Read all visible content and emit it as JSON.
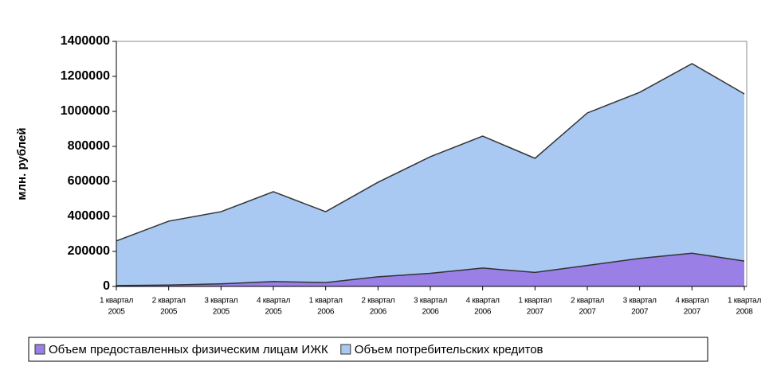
{
  "chart_data": {
    "type": "area",
    "y_label": "млн. рублей",
    "categories": [
      [
        "1 квартал",
        "2005"
      ],
      [
        "2 квартал",
        "2005"
      ],
      [
        "3 квартал",
        "2005"
      ],
      [
        "4 квартал",
        "2005"
      ],
      [
        "1 квартал",
        "2006"
      ],
      [
        "2 квартал",
        "2006"
      ],
      [
        "3 квартал",
        "2006"
      ],
      [
        "4 квартал",
        "2006"
      ],
      [
        "1 квартал",
        "2007"
      ],
      [
        "2 квартал",
        "2007"
      ],
      [
        "3 квартал",
        "2007"
      ],
      [
        "4 квартал",
        "2007"
      ],
      [
        "1 квартал",
        "2008"
      ]
    ],
    "series": [
      {
        "name": "Объем потребительских кредитов",
        "color": "#a9c8f2",
        "values": [
          260000,
          373000,
          427000,
          541000,
          427000,
          595000,
          741000,
          859000,
          732000,
          991000,
          1109000,
          1273000,
          1100000
        ]
      },
      {
        "name": "Объем предоставленных физическим лицам ИЖК",
        "color": "#9a80e6",
        "values": [
          5000,
          8000,
          15000,
          28000,
          22000,
          55000,
          75000,
          105000,
          80000,
          120000,
          160000,
          190000,
          145000
        ]
      }
    ],
    "legend_order": [
      1,
      0
    ],
    "ylim": [
      0,
      1400000
    ],
    "yticks": [
      0,
      200000,
      400000,
      600000,
      800000,
      1000000,
      1200000,
      1400000
    ]
  }
}
